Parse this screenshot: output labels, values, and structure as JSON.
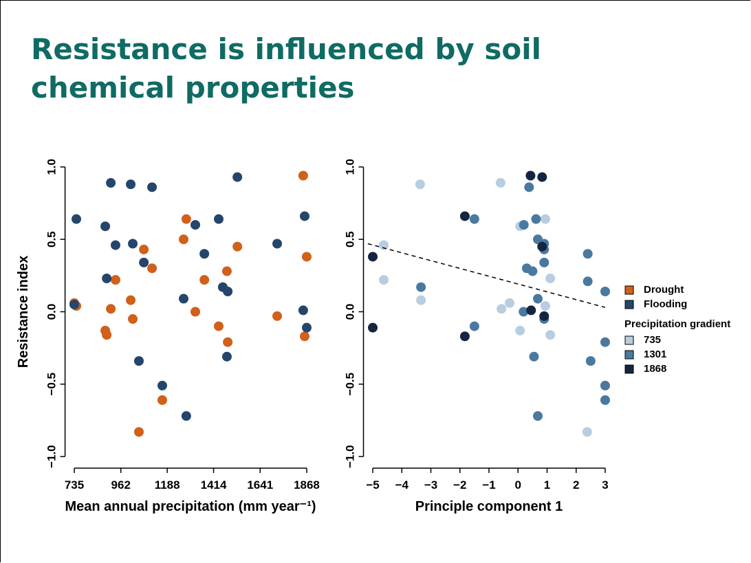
{
  "title": "Resistance is influenced by soil chemical properties",
  "chart_data": [
    {
      "type": "scatter",
      "xlabel": "Mean annual precipitation (mm year⁻¹)",
      "ylabel": "Resistance index",
      "xlim": [
        690,
        1913
      ],
      "ylim": [
        -1.08,
        1.08
      ],
      "xticks": [
        735,
        962,
        1188,
        1414,
        1641,
        1868
      ],
      "yticks": [
        {
          "value": -1,
          "label": "−1.0"
        },
        {
          "value": -0.5,
          "label": "−0.5"
        },
        {
          "value": 0,
          "label": "0.0"
        },
        {
          "value": 0.5,
          "label": "0.5"
        },
        {
          "value": 1,
          "label": "1.0"
        }
      ],
      "series": [
        {
          "name": "Drought",
          "color": "#d0601a",
          "x": [
            735,
            745,
            886,
            893,
            913,
            936,
            1010,
            1020,
            1050,
            1074,
            1114,
            1164,
            1268,
            1281,
            1325,
            1369,
            1439,
            1459,
            1479,
            1483,
            1530,
            1724,
            1851,
            1858,
            1868
          ],
          "y": [
            0.06,
            0.04,
            -0.13,
            -0.16,
            0.02,
            0.22,
            0.08,
            -0.05,
            -0.83,
            0.43,
            0.3,
            -0.61,
            0.5,
            0.64,
            0,
            0.22,
            -0.1,
            0.17,
            0.28,
            -0.21,
            0.45,
            -0.03,
            0.94,
            -0.17,
            0.38
          ]
        },
        {
          "name": "Flooding",
          "color": "#25466b",
          "x": [
            735,
            745,
            886,
            893,
            913,
            936,
            1010,
            1020,
            1050,
            1074,
            1114,
            1164,
            1268,
            1281,
            1325,
            1369,
            1439,
            1459,
            1483,
            1479,
            1530,
            1724,
            1851,
            1858,
            1868
          ],
          "y": [
            0.05,
            0.64,
            0.59,
            0.23,
            0.89,
            0.46,
            0.88,
            0.47,
            -0.34,
            0.34,
            0.86,
            -0.51,
            0.09,
            -0.72,
            0.6,
            0.4,
            0.64,
            0.17,
            0.14,
            -0.31,
            0.93,
            0.47,
            0.01,
            0.66,
            -0.11
          ]
        }
      ]
    },
    {
      "type": "scatter",
      "xlabel": "Principle component 1",
      "legend_title": "Precipitation gradient",
      "xlim": [
        -5.32,
        3.32
      ],
      "ylim": [
        -1.08,
        1.08
      ],
      "xticks": [
        {
          "value": -5,
          "label": "−5"
        },
        {
          "value": -4,
          "label": "−4"
        },
        {
          "value": -3,
          "label": "−3"
        },
        {
          "value": -2,
          "label": "−2"
        },
        {
          "value": -1,
          "label": "−1"
        },
        0,
        1,
        2,
        3
      ],
      "yticks": [
        {
          "value": -1,
          "label": "−1.0"
        },
        {
          "value": -0.5,
          "label": "−0.5"
        },
        {
          "value": 0,
          "label": "0.0"
        },
        {
          "value": 0.5,
          "label": "0.5"
        },
        {
          "value": 1,
          "label": "1.0"
        }
      ],
      "series": [
        {
          "name": "735",
          "color": "#b8cde0",
          "x": [
            -4.62,
            -4.62,
            -3.37,
            -3.34,
            -0.6,
            -0.57,
            -0.29,
            0.07,
            0.07,
            0.94,
            0.94,
            1.11,
            1.11,
            2.38
          ],
          "y": [
            0.46,
            0.22,
            0.88,
            0.08,
            0.89,
            0.02,
            0.06,
            -0.13,
            0.59,
            0.64,
            0.04,
            0.23,
            -0.16,
            -0.83
          ]
        },
        {
          "name": "1301",
          "color": "#4a79a0",
          "x": [
            -3.34,
            -1.5,
            -1.5,
            0.2,
            0.19,
            0.3,
            0.38,
            0.55,
            0.5,
            0.62,
            0.68,
            0.68,
            0.68,
            0.9,
            0.9,
            0.9,
            0.9,
            2.4,
            2.4,
            2.5,
            3,
            3,
            3,
            3
          ],
          "y": [
            0.17,
            -0.1,
            0.64,
            0.6,
            0,
            0.3,
            0.86,
            -0.31,
            0.28,
            0.64,
            0.5,
            0.09,
            -0.72,
            0.47,
            0.34,
            0.43,
            -0.05,
            0.4,
            0.21,
            -0.34,
            -0.51,
            -0.61,
            0.14,
            -0.21
          ]
        },
        {
          "name": "1868",
          "color": "#152540",
          "x": [
            -5,
            -5,
            -1.83,
            -1.83,
            0.43,
            0.83,
            0.83,
            0.45,
            0.9
          ],
          "y": [
            0.38,
            -0.11,
            0.66,
            -0.17,
            0.94,
            0.93,
            0.45,
            0.01,
            -0.03
          ]
        }
      ],
      "trendline": {
        "x": [
          -5.17,
          3
        ],
        "y": [
          0.47,
          0.03
        ]
      }
    }
  ]
}
